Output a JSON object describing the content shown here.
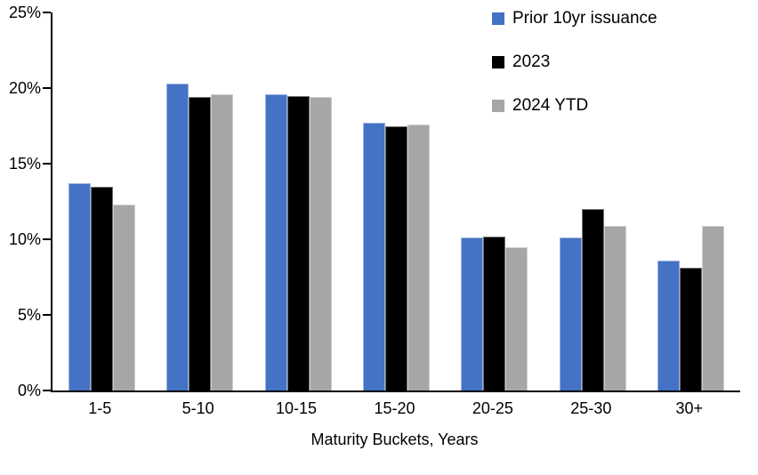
{
  "chart_data": {
    "type": "bar",
    "title": "",
    "xlabel": "Maturity Buckets, Years",
    "ylabel": "",
    "ylim": [
      0,
      25
    ],
    "ytick_step": 5,
    "ytick_suffix": "%",
    "grid": false,
    "legend_position": "top-right",
    "categories": [
      "1-5",
      "5-10",
      "10-15",
      "15-20",
      "20-25",
      "25-30",
      "30+"
    ],
    "series": [
      {
        "name": "Prior 10yr issuance",
        "color": "#4472C4",
        "values": [
          13.7,
          20.3,
          19.6,
          17.7,
          10.1,
          10.1,
          8.6
        ]
      },
      {
        "name": "2023",
        "color": "#000000",
        "values": [
          13.5,
          19.4,
          19.5,
          17.5,
          10.2,
          12.0,
          8.1
        ]
      },
      {
        "name": "2024 YTD",
        "color": "#A6A6A6",
        "values": [
          12.3,
          19.6,
          19.4,
          17.6,
          9.5,
          10.9,
          10.9
        ]
      }
    ],
    "colors": {
      "axis": "#000000",
      "background": "#FFFFFF"
    }
  }
}
